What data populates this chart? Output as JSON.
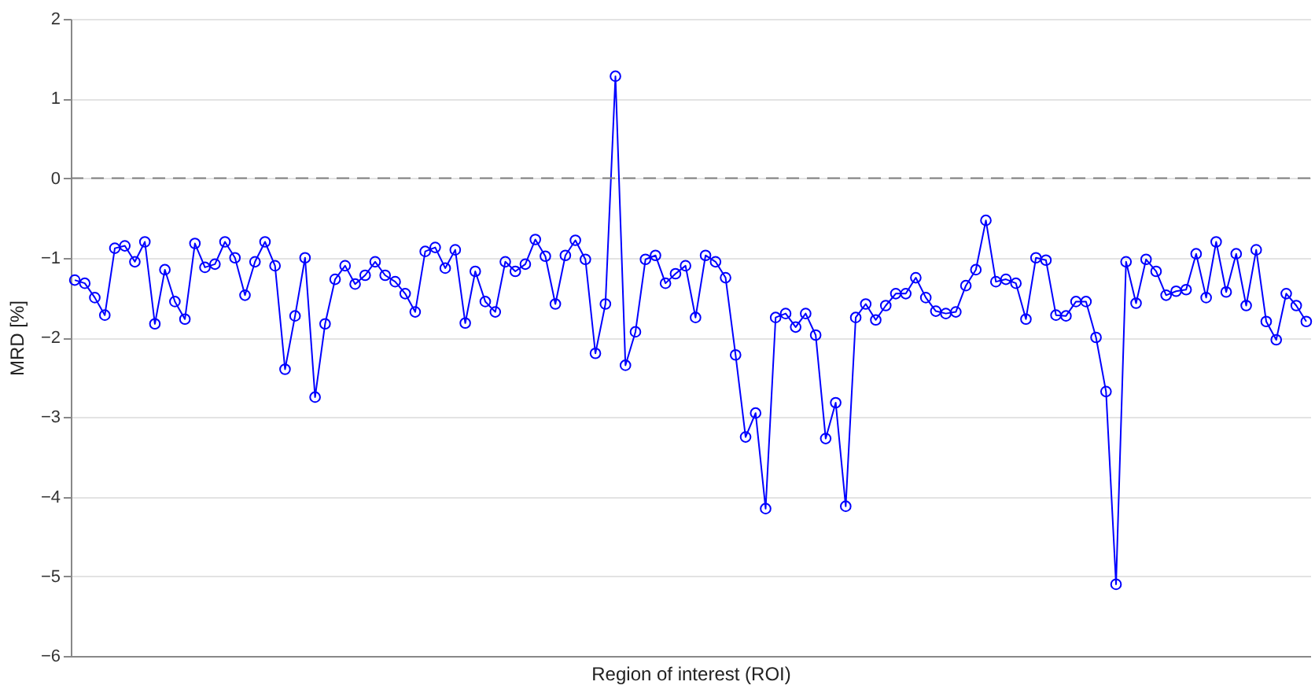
{
  "chart_data": {
    "type": "line",
    "xlabel": "Region of interest (ROI)",
    "ylabel": "MRD [%]",
    "categories": [
      null,
      null,
      null,
      null,
      null,
      null,
      null,
      null,
      null,
      null,
      null,
      null,
      null,
      null,
      null,
      null,
      null,
      null,
      null,
      null,
      null,
      null,
      null,
      null,
      null,
      null,
      null,
      null,
      null,
      null,
      null,
      null,
      null,
      null,
      null,
      null,
      null,
      null,
      null,
      null,
      null,
      null,
      null,
      null,
      null,
      null,
      null,
      null,
      null,
      null,
      null,
      null,
      null,
      null,
      null,
      null,
      null,
      null,
      null,
      null,
      null,
      null,
      null,
      null,
      null,
      null,
      null,
      null,
      null,
      null,
      null,
      null,
      null,
      null,
      null,
      null,
      null,
      null,
      null,
      null,
      null,
      null,
      null,
      null,
      null,
      null,
      null,
      null,
      null,
      null,
      null,
      null,
      null,
      null,
      null,
      null,
      null,
      null,
      null,
      null,
      null,
      null,
      null,
      null,
      null,
      null,
      null,
      null,
      null,
      null,
      null,
      null,
      null,
      null,
      null,
      null,
      null,
      null,
      null,
      null,
      null,
      null,
      null,
      null
    ],
    "series": [
      {
        "color": "#0000ff",
        "values": [
          -1.28,
          -1.32,
          -1.5,
          -1.72,
          -0.88,
          -0.85,
          -1.05,
          -0.8,
          -1.83,
          -1.15,
          -1.55,
          -1.77,
          -0.82,
          -1.12,
          -1.08,
          -0.8,
          -1.0,
          -1.47,
          -1.05,
          -0.8,
          -1.1,
          -2.4,
          -1.73,
          -1.0,
          -2.75,
          -1.83,
          -1.27,
          -1.1,
          -1.33,
          -1.22,
          -1.05,
          -1.22,
          -1.3,
          -1.45,
          -1.68,
          -0.92,
          -0.87,
          -1.13,
          -0.9,
          -1.82,
          -1.17,
          -1.55,
          -1.68,
          -1.05,
          -1.17,
          -1.08,
          -0.77,
          -0.98,
          -1.58,
          -0.97,
          -0.78,
          -1.02,
          -2.2,
          -1.58,
          1.28,
          -2.35,
          -1.93,
          -1.02,
          -0.97,
          -1.32,
          -1.2,
          -1.1,
          -1.75,
          -0.97,
          -1.05,
          -1.25,
          -2.22,
          -3.25,
          -2.95,
          -4.15,
          -1.75,
          -1.7,
          -1.87,
          -1.7,
          -1.97,
          -3.27,
          -2.82,
          -4.12,
          -1.75,
          -1.58,
          -1.78,
          -1.6,
          -1.45,
          -1.45,
          -1.25,
          -1.5,
          -1.67,
          -1.7,
          -1.68,
          -1.35,
          -1.15,
          -0.53,
          -1.3,
          -1.27,
          -1.32,
          -1.77,
          -1.0,
          -1.03,
          -1.72,
          -1.73,
          -1.55,
          -1.55,
          -2.0,
          -2.68,
          -5.1,
          -1.05,
          -1.57,
          -1.02,
          -1.17,
          -1.47,
          -1.42,
          -1.4,
          -0.95,
          -1.5,
          -0.8,
          -1.43,
          -0.95,
          -1.6,
          -0.9,
          -1.8,
          -2.03,
          -1.45,
          -1.6,
          -1.8
        ]
      }
    ],
    "ylim": [
      -6,
      2
    ],
    "yticks": [
      -6,
      -5,
      -4,
      -3,
      -2,
      -1,
      0,
      1,
      2
    ],
    "grid": "y",
    "marker": "circle",
    "line_style": "solid",
    "ref_lines": [
      {
        "axis": "y",
        "value": 0,
        "color": "#808080",
        "line_style": "dashed"
      }
    ]
  }
}
